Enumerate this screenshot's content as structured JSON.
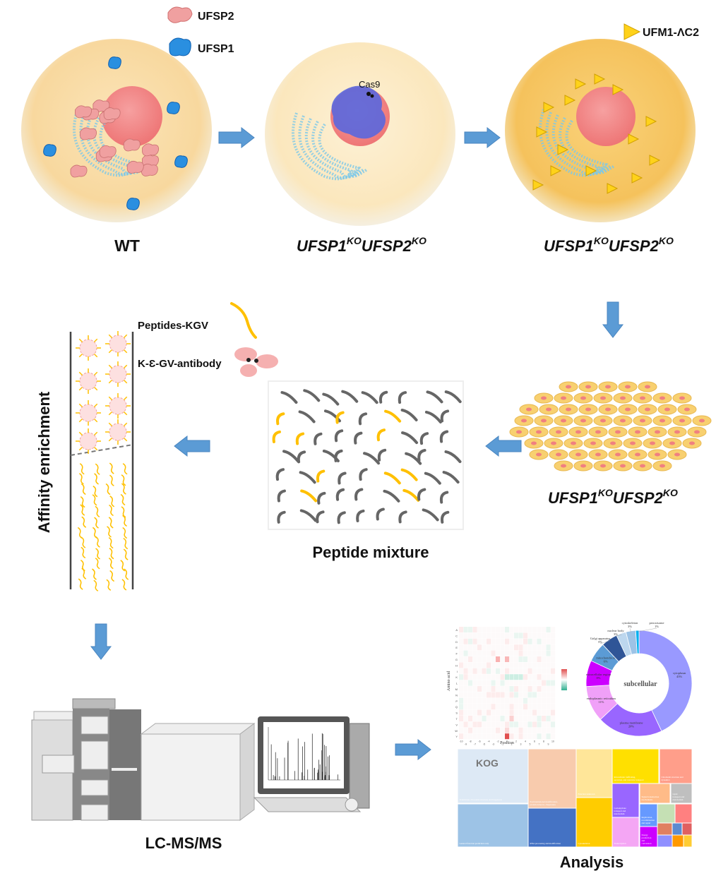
{
  "legend": {
    "ufsp2": "UFSP2",
    "ufsp1": "UFSP1",
    "ufm1": "UFM1-ΛC2",
    "cas9": "Cas9",
    "peptides": "Peptides-KGV",
    "antibody": "K-Ɛ-GV-antibody"
  },
  "labels": {
    "wt": "WT",
    "ko_a": "UFSP1",
    "ko_b": "UFSP2",
    "ko_sup": "KO",
    "affinity": "Affinity enrichment",
    "peptide_mixture": "Peptide mixture",
    "lcms": "LC-MS/MS",
    "analysis": "Analysis"
  },
  "colors": {
    "arrow": "#5b9bd5",
    "ufsp2": "#f0a0a0",
    "ufsp1": "#2a8fe0",
    "ufm1": "#ffd21a",
    "peptide_yellow": "#ffc000",
    "peptide_gray": "#666666"
  },
  "heatmap": {
    "xlabel": "Position",
    "ylabel": "Amino acid",
    "rows": [
      "A",
      "C",
      "D",
      "E",
      "F",
      "G",
      "H",
      "I",
      "K",
      "L",
      "M",
      "N",
      "P",
      "Q",
      "S",
      "T",
      "V",
      "W",
      "Y"
    ],
    "cols": [
      "-10",
      "-9",
      "-8",
      "-7",
      "-6",
      "-5",
      "-4",
      "-3",
      "-2",
      "-1",
      "0",
      "1",
      "2",
      "3",
      "4",
      "5",
      "6",
      "7",
      "8",
      "9",
      "10"
    ]
  },
  "donut": {
    "center": "subcellular",
    "slices": [
      {
        "name": "cytoplasm",
        "pct": 43,
        "color": "#9999ff"
      },
      {
        "name": "plasma membrane",
        "pct": 20,
        "color": "#9966ff"
      },
      {
        "name": "endoplasmic reticulum",
        "pct": 11,
        "color": "#f0a0f8"
      },
      {
        "name": "extracellular region",
        "pct": 8,
        "color": "#cc00ff"
      },
      {
        "name": "mitochondrion",
        "pct": 6,
        "color": "#5b9bd5"
      },
      {
        "name": "Golgi apparatus",
        "pct": 5,
        "color": "#2f5597"
      },
      {
        "name": "nuclear body",
        "pct": 3,
        "color": "#bdd7ee"
      },
      {
        "name": "cytoskeleton",
        "pct": 3,
        "color": "#9dc3e6"
      },
      {
        "name": "peroxisome",
        "pct": 1,
        "color": "#00b0f0"
      }
    ]
  },
  "treemap": {
    "title": "KOG",
    "items": [
      {
        "name": "Translation, ribosomal structure and biogenesis",
        "color": "#dde9f5"
      },
      {
        "name": "General function prediction only",
        "color": "#9dc3e6"
      },
      {
        "name": "Posttranslational modification, protein turnover, chaperones",
        "color": "#f8cbad"
      },
      {
        "name": "RNA processing and modification",
        "color": "#4472c4"
      },
      {
        "name": "Function unknown",
        "color": "#ffe699"
      },
      {
        "name": "Cytoskeleton",
        "color": "#ffcc00"
      },
      {
        "name": "Intracellular trafficking, secretion, and vesicular transport",
        "color": "#ffe000"
      },
      {
        "name": "Chromatin structure and dynamics",
        "color": "#ff9e8a"
      },
      {
        "name": "Carbohydrate transport and metabolism",
        "color": "#9966ff"
      },
      {
        "name": "Transcription",
        "color": "#f4a6f4"
      },
      {
        "name": "Signal transduction mechanisms",
        "color": "#ffbb88"
      },
      {
        "name": "Lipid transport and metabolism",
        "color": "#bfbfbf"
      },
      {
        "name": "Replication, recombination and repair",
        "color": "#6699ff"
      },
      {
        "name": "Energy production and conversion",
        "color": "#cc00ff"
      }
    ]
  }
}
